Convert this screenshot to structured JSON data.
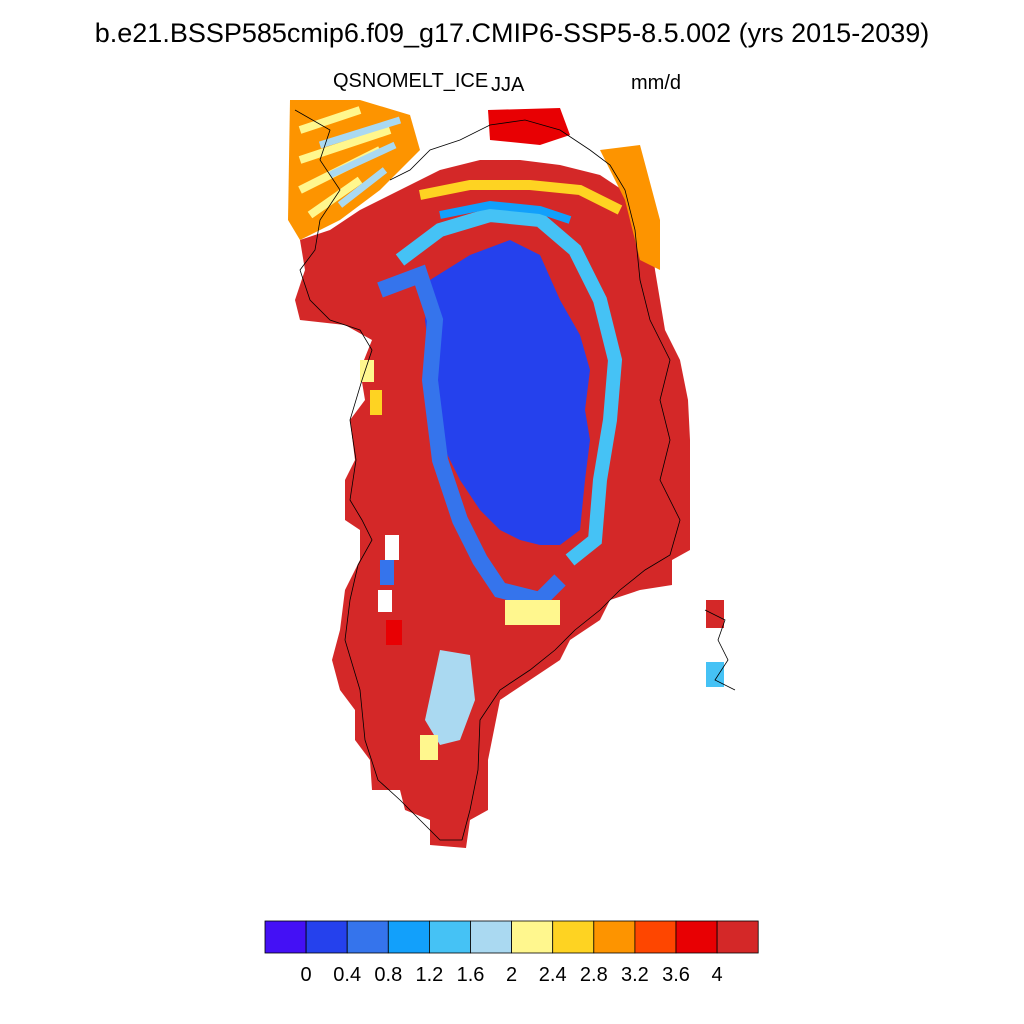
{
  "title": "b.e21.BSSP585cmip6.f09_g17.CMIP6-SSP5-8.5.002 (yrs 2015-2039)",
  "variable": "QSNOMELT_ICE",
  "season": "JJA",
  "units": "mm/d",
  "colorbar": {
    "colors": [
      "#4410f5",
      "#2541ed",
      "#3574ec",
      "#12a0fb",
      "#45c2f5",
      "#aad9f1",
      "#fff78e",
      "#fed322",
      "#fd9400",
      "#fe4600",
      "#e80003",
      "#d42828"
    ],
    "ticks": [
      "0",
      "0.4",
      "0.8",
      "1.2",
      "1.6",
      "2",
      "2.4",
      "2.8",
      "3.2",
      "3.6",
      "4"
    ]
  },
  "colors": {
    "background": "#ffffff",
    "coast": "#000000",
    "land_fill": "#d42828",
    "interior": "#2541ed"
  }
}
